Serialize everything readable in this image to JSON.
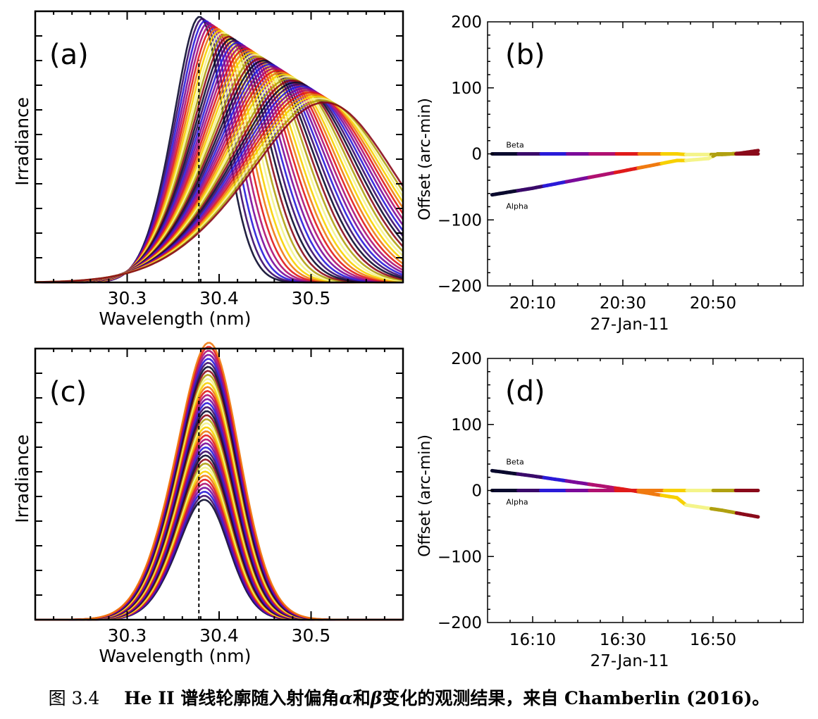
{
  "figure_caption": {
    "label": "图 3.4",
    "text_before": "He II 谱线轮廓随入射偏角",
    "alpha": "α",
    "and": "和",
    "beta": "β",
    "text_after": "变化的观测结果，来自 Chamberlin (2016)。"
  },
  "palette": [
    "#0a0a2e",
    "#3a0a6a",
    "#2a1ad8",
    "#7a0a9a",
    "#b01070",
    "#e01a1a",
    "#f07a10",
    "#f7d000",
    "#f4f48a",
    "#b0a010",
    "#8a0a1a"
  ],
  "chart_data": [
    {
      "panel_label": "(a)",
      "type": "line",
      "xlabel": "Wavelength (nm)",
      "ylabel": "Irradiance",
      "xlim": [
        30.2,
        30.6
      ],
      "xticks": [
        "30.3",
        "30.4",
        "30.5"
      ],
      "yticks_labeled": false,
      "reference_wavelength": 30.378,
      "profiles": {
        "count": 44,
        "peak_center_range": [
          30.37,
          30.49
        ],
        "peak_height_range": [
          0.93,
          0.63
        ],
        "width_nm_range": [
          0.03,
          0.085
        ]
      }
    },
    {
      "panel_label": "(b)",
      "type": "scatter",
      "xlabel": "27-Jan-11",
      "ylabel": "Offset (arc-min)",
      "ylim": [
        -200,
        200
      ],
      "yticks": [
        "200",
        "100",
        "0",
        "−100",
        "−200"
      ],
      "xticks": [
        "20:10",
        "20:30",
        "20:50"
      ],
      "series": [
        {
          "name": "Beta",
          "points": [
            [
              "20:01",
              0
            ],
            [
              "20:42",
              0
            ],
            [
              "20:44",
              -1
            ],
            [
              "20:52",
              -1
            ],
            [
              "20:56",
              1
            ],
            [
              "21:00",
              5
            ]
          ]
        },
        {
          "name": "Alpha",
          "points": [
            [
              "20:01",
              -62
            ],
            [
              "20:10",
              -52
            ],
            [
              "20:20",
              -39
            ],
            [
              "20:30",
              -26
            ],
            [
              "20:42",
              -10
            ],
            [
              "20:44",
              -10
            ],
            [
              "20:49",
              -7
            ],
            [
              "20:51",
              0
            ],
            [
              "21:00",
              0
            ]
          ]
        }
      ]
    },
    {
      "panel_label": "(c)",
      "type": "line",
      "xlabel": "Wavelength (nm)",
      "ylabel": "Irradiance",
      "xlim": [
        30.2,
        30.6
      ],
      "xticks": [
        "30.3",
        "30.4",
        "30.5"
      ],
      "yticks_labeled": false,
      "reference_wavelength": 30.378,
      "profiles": {
        "count": 40,
        "peak_center_range": [
          30.375,
          30.378
        ],
        "peak_height_range": [
          0.42,
          0.97
        ],
        "width_nm_range": [
          0.03,
          0.037
        ]
      }
    },
    {
      "panel_label": "(d)",
      "type": "scatter",
      "xlabel": "27-Jan-11",
      "ylabel": "Offset (arc-min)",
      "ylim": [
        -200,
        200
      ],
      "yticks": [
        "200",
        "100",
        "0",
        "−100",
        "−200"
      ],
      "xticks": [
        "16:10",
        "16:30",
        "16:50"
      ],
      "series": [
        {
          "name": "Beta",
          "points": [
            [
              "16:01",
              30
            ],
            [
              "16:10",
              22
            ],
            [
              "16:20",
              12
            ],
            [
              "16:30",
              2
            ],
            [
              "16:42",
              -11
            ],
            [
              "16:44",
              -22
            ],
            [
              "16:52",
              -30
            ],
            [
              "17:00",
              -40
            ]
          ]
        },
        {
          "name": "Alpha",
          "points": [
            [
              "16:01",
              0
            ],
            [
              "17:00",
              0
            ]
          ]
        }
      ]
    }
  ]
}
